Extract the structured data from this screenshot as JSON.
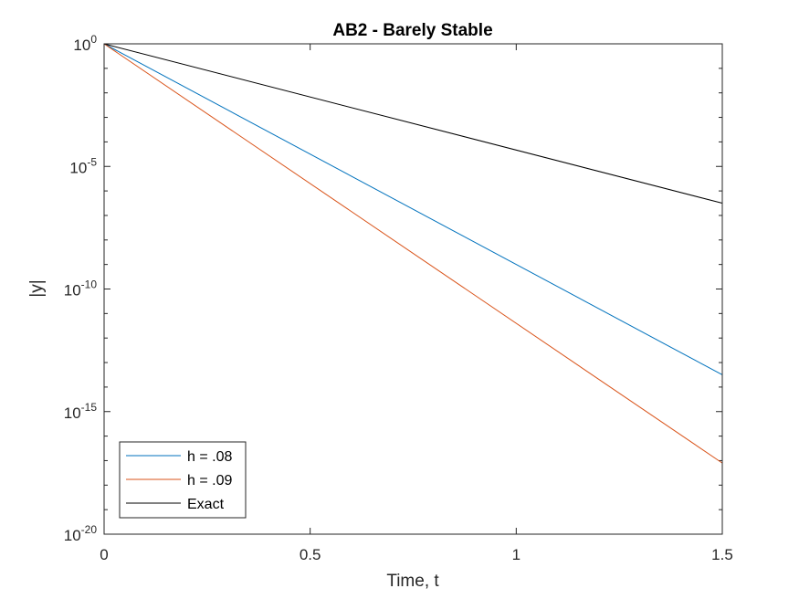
{
  "chart_data": {
    "type": "line",
    "title": "AB2 - Barely Stable",
    "xlabel": "Time, t",
    "ylabel": "|y|",
    "xlim": [
      0,
      1.5
    ],
    "ylim_exponent": [
      -20,
      0
    ],
    "yscale": "log",
    "x_ticks": [
      "0",
      "0.5",
      "1",
      "1.5"
    ],
    "y_ticks": [
      {
        "base": "10",
        "exp": "0"
      },
      {
        "base": "10",
        "exp": "-5"
      },
      {
        "base": "10",
        "exp": "-10"
      },
      {
        "base": "10",
        "exp": "-15"
      },
      {
        "base": "10",
        "exp": "-20"
      }
    ],
    "grid": false,
    "legend_position": "bottom-left",
    "series": [
      {
        "name": "h = .08",
        "color": "#0072BD",
        "x": [
          0,
          1.5
        ],
        "log10_y": [
          0,
          -13.5
        ]
      },
      {
        "name": "h = .09",
        "color": "#D95319",
        "x": [
          0,
          1.5
        ],
        "log10_y": [
          0,
          -17.1
        ]
      },
      {
        "name": "Exact",
        "color": "#000000",
        "x": [
          0,
          1.5
        ],
        "log10_y": [
          0,
          -6.5
        ]
      }
    ]
  }
}
